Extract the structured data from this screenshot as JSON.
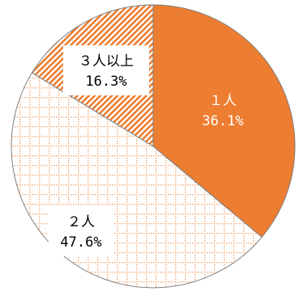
{
  "chart_data": {
    "type": "pie",
    "slices": [
      {
        "name": "1人",
        "label": "１人",
        "value": 36.1,
        "value_label": "36.1%",
        "style": "solid",
        "color": "#ED7D31",
        "text_color": "#ffffff"
      },
      {
        "name": "2人",
        "label": "２人",
        "value": 47.6,
        "value_label": "47.6%",
        "style": "dotted-grid",
        "color": "#F4B183",
        "text_color": "#000000"
      },
      {
        "name": "3人以上",
        "label": "３人以上",
        "value": 16.3,
        "value_label": "16.3%",
        "style": "diagonal-stripe",
        "color": "#ED7D31",
        "text_color": "#000000"
      }
    ],
    "start_angle_deg": 0,
    "direction": "clockwise"
  }
}
